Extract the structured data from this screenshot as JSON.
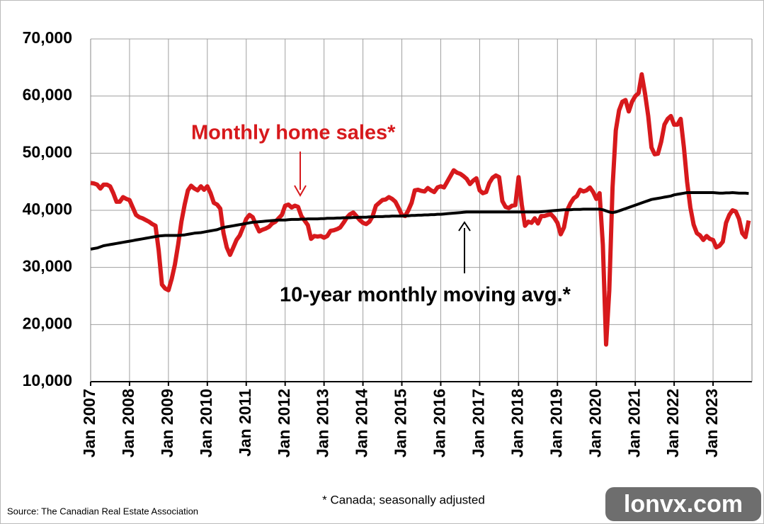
{
  "chart_data": {
    "type": "line",
    "annotations": [
      {
        "text": "Monthly home sales*"
      },
      {
        "text": "10-year monthly moving avg.*"
      }
    ],
    "footnote": "* Canada; seasonally adjusted",
    "source": "Source: The Canadian Real Estate Association",
    "watermark": "lonvx.com",
    "categories": [
      "Jan 2007",
      null,
      null,
      null,
      null,
      null,
      null,
      null,
      null,
      null,
      null,
      null,
      "Jan 2008",
      null,
      null,
      null,
      null,
      null,
      null,
      null,
      null,
      null,
      null,
      null,
      "Jan 2009",
      null,
      null,
      null,
      null,
      null,
      null,
      null,
      null,
      null,
      null,
      null,
      "Jan 2010",
      null,
      null,
      null,
      null,
      null,
      null,
      null,
      null,
      null,
      null,
      null,
      "Jan 2011",
      null,
      null,
      null,
      null,
      null,
      null,
      null,
      null,
      null,
      null,
      null,
      "Jan 2012",
      null,
      null,
      null,
      null,
      null,
      null,
      null,
      null,
      null,
      null,
      null,
      "Jan 2013",
      null,
      null,
      null,
      null,
      null,
      null,
      null,
      null,
      null,
      null,
      null,
      "Jan 2014",
      null,
      null,
      null,
      null,
      null,
      null,
      null,
      null,
      null,
      null,
      null,
      "Jan 2015",
      null,
      null,
      null,
      null,
      null,
      null,
      null,
      null,
      null,
      null,
      null,
      "Jan 2016",
      null,
      null,
      null,
      null,
      null,
      null,
      null,
      null,
      null,
      null,
      null,
      "Jan 2017",
      null,
      null,
      null,
      null,
      null,
      null,
      null,
      null,
      null,
      null,
      null,
      "Jan 2018",
      null,
      null,
      null,
      null,
      null,
      null,
      null,
      null,
      null,
      null,
      null,
      "Jan 2019",
      null,
      null,
      null,
      null,
      null,
      null,
      null,
      null,
      null,
      null,
      null,
      "Jan 2020",
      null,
      null,
      null,
      null,
      null,
      null,
      null,
      null,
      null,
      null,
      null,
      "Jan 2021",
      null,
      null,
      null,
      null,
      null,
      null,
      null,
      null,
      null,
      null,
      null,
      "Jan 2022",
      null,
      null,
      null,
      null,
      null,
      null,
      null,
      null,
      null,
      null,
      null,
      "Jan 2023",
      null,
      null,
      null,
      null,
      null,
      null,
      null,
      null,
      null,
      null,
      null
    ],
    "series": [
      {
        "name": "Monthly home sales*",
        "color": "#d7191c",
        "values": [
          44800,
          44700,
          44500,
          43800,
          44500,
          44500,
          44200,
          43000,
          41500,
          41500,
          42300,
          42000,
          41800,
          40500,
          39200,
          38800,
          38600,
          38300,
          38000,
          37600,
          37300,
          33000,
          27000,
          26300,
          26000,
          28000,
          30500,
          34000,
          38000,
          41000,
          43500,
          44300,
          43800,
          43500,
          44200,
          43600,
          44200,
          43000,
          41300,
          41000,
          40300,
          36000,
          33500,
          32200,
          33500,
          34800,
          35600,
          37000,
          38500,
          39200,
          38800,
          37500,
          36300,
          36600,
          36800,
          37100,
          37700,
          38000,
          38600,
          39200,
          40800,
          41000,
          40500,
          40800,
          40600,
          39000,
          38200,
          37400,
          35000,
          35500,
          35400,
          35500,
          35200,
          35500,
          36400,
          36500,
          36700,
          37000,
          37800,
          38700,
          39300,
          39600,
          39000,
          38300,
          37800,
          37600,
          38000,
          39000,
          40800,
          41300,
          41800,
          41900,
          42300,
          42000,
          41500,
          40400,
          39200,
          39000,
          40000,
          41300,
          43500,
          43600,
          43400,
          43300,
          43900,
          43500,
          43200,
          44000,
          44200,
          44000,
          45000,
          46000,
          47000,
          46600,
          46400,
          46000,
          45500,
          44600,
          45200,
          45600,
          43500,
          43000,
          43200,
          44800,
          45700,
          46100,
          45800,
          41600,
          40600,
          40400,
          40800,
          40900,
          45800,
          41000,
          37300,
          38000,
          37800,
          38600,
          37700,
          39000,
          39000,
          39200,
          39300,
          38700,
          37800,
          35800,
          37000,
          40000,
          41200,
          42100,
          42500,
          43600,
          43300,
          43500,
          44000,
          43200,
          42000,
          43000,
          34000,
          16500,
          26000,
          44000,
          54000,
          57500,
          59000,
          59300,
          57300,
          59000,
          60000,
          60500,
          63800,
          60500,
          56500,
          51000,
          49800,
          49900,
          52000,
          55000,
          56000,
          56500,
          55000,
          55000,
          56000,
          51000,
          45000,
          40500,
          37500,
          36000,
          35600,
          34800,
          35500,
          35000,
          34800,
          33500,
          33800,
          34500,
          37800,
          39200,
          40000,
          39800,
          38500,
          36000,
          35300,
          38200
        ]
      },
      {
        "name": "10-year monthly moving avg.*",
        "color": "#000000",
        "values": [
          33200,
          33300,
          33400,
          33600,
          33800,
          33900,
          34000,
          34100,
          34200,
          34300,
          34400,
          34500,
          34600,
          34700,
          34800,
          34900,
          35000,
          35100,
          35200,
          35300,
          35400,
          35500,
          35550,
          35600,
          35600,
          35600,
          35600,
          35600,
          35650,
          35700,
          35800,
          35900,
          36000,
          36050,
          36100,
          36200,
          36300,
          36400,
          36500,
          36600,
          36800,
          37000,
          37100,
          37200,
          37300,
          37400,
          37500,
          37600,
          37700,
          37800,
          37900,
          37950,
          38000,
          38050,
          38100,
          38150,
          38200,
          38250,
          38300,
          38300,
          38300,
          38350,
          38400,
          38400,
          38400,
          38450,
          38450,
          38500,
          38500,
          38500,
          38500,
          38550,
          38550,
          38600,
          38600,
          38600,
          38650,
          38650,
          38700,
          38700,
          38700,
          38750,
          38750,
          38800,
          38800,
          38800,
          38850,
          38850,
          38900,
          38900,
          38900,
          38950,
          38950,
          39000,
          39000,
          39000,
          39000,
          39050,
          39050,
          39100,
          39100,
          39150,
          39150,
          39200,
          39200,
          39250,
          39250,
          39300,
          39300,
          39350,
          39400,
          39450,
          39500,
          39550,
          39600,
          39650,
          39700,
          39700,
          39700,
          39700,
          39700,
          39700,
          39700,
          39700,
          39700,
          39700,
          39700,
          39700,
          39700,
          39700,
          39700,
          39700,
          39700,
          39700,
          39700,
          39700,
          39700,
          39700,
          39700,
          39750,
          39800,
          39850,
          39900,
          39950,
          40000,
          40050,
          40100,
          40100,
          40100,
          40150,
          40150,
          40150,
          40200,
          40200,
          40200,
          40200,
          40200,
          40200,
          40100,
          39900,
          39700,
          39600,
          39700,
          39900,
          40100,
          40300,
          40500,
          40700,
          40900,
          41100,
          41300,
          41500,
          41700,
          41900,
          42000,
          42100,
          42200,
          42300,
          42400,
          42500,
          42700,
          42800,
          42900,
          43000,
          43100,
          43100,
          43100,
          43100,
          43100,
          43100,
          43100,
          43100,
          43100,
          43050,
          43000,
          43000,
          43050,
          43050,
          43100,
          43050,
          43000,
          43000,
          43000,
          42950
        ]
      }
    ],
    "ylim": [
      10000,
      70000
    ],
    "yticks": [
      {
        "value": 10000,
        "label": "10,000"
      },
      {
        "value": 20000,
        "label": "20,000"
      },
      {
        "value": 30000,
        "label": "30,000"
      },
      {
        "value": 40000,
        "label": "40,000"
      },
      {
        "value": 50000,
        "label": "50,000"
      },
      {
        "value": 60000,
        "label": "60,000"
      },
      {
        "value": 70000,
        "label": "70,000"
      }
    ],
    "grid": true
  }
}
